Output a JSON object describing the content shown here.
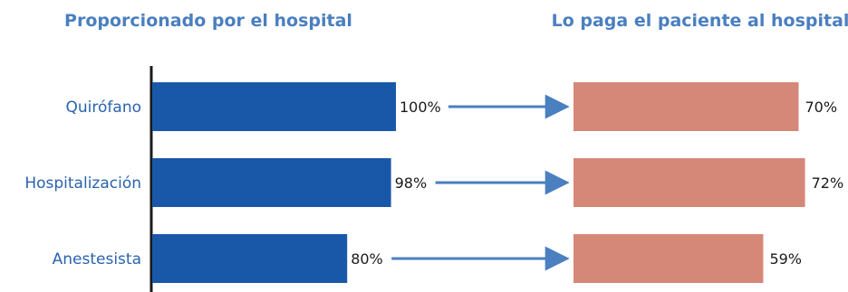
{
  "chart_data": {
    "type": "bar",
    "orientation": "horizontal",
    "categories": [
      "Quirófano",
      "Hospitalización",
      "Anestesista"
    ],
    "series": [
      {
        "name": "Proporcionado por el hospital",
        "values": [
          100,
          98,
          80
        ],
        "labels": [
          "100%",
          "98%",
          "80%"
        ]
      },
      {
        "name": "Lo paga el paciente al hospital",
        "values": [
          70,
          72,
          59
        ],
        "labels": [
          "70%",
          "72%",
          "59%"
        ]
      }
    ],
    "xlim": [
      0,
      100
    ],
    "grid": false,
    "legend": "none",
    "colors": {
      "left_bars": "#1957A8",
      "right_bars": "#D68878",
      "arrows": "#4A7FC0",
      "headings": "#4A7FC0",
      "category_text": "#2A63AE",
      "axis": "#1a1a1a"
    }
  }
}
